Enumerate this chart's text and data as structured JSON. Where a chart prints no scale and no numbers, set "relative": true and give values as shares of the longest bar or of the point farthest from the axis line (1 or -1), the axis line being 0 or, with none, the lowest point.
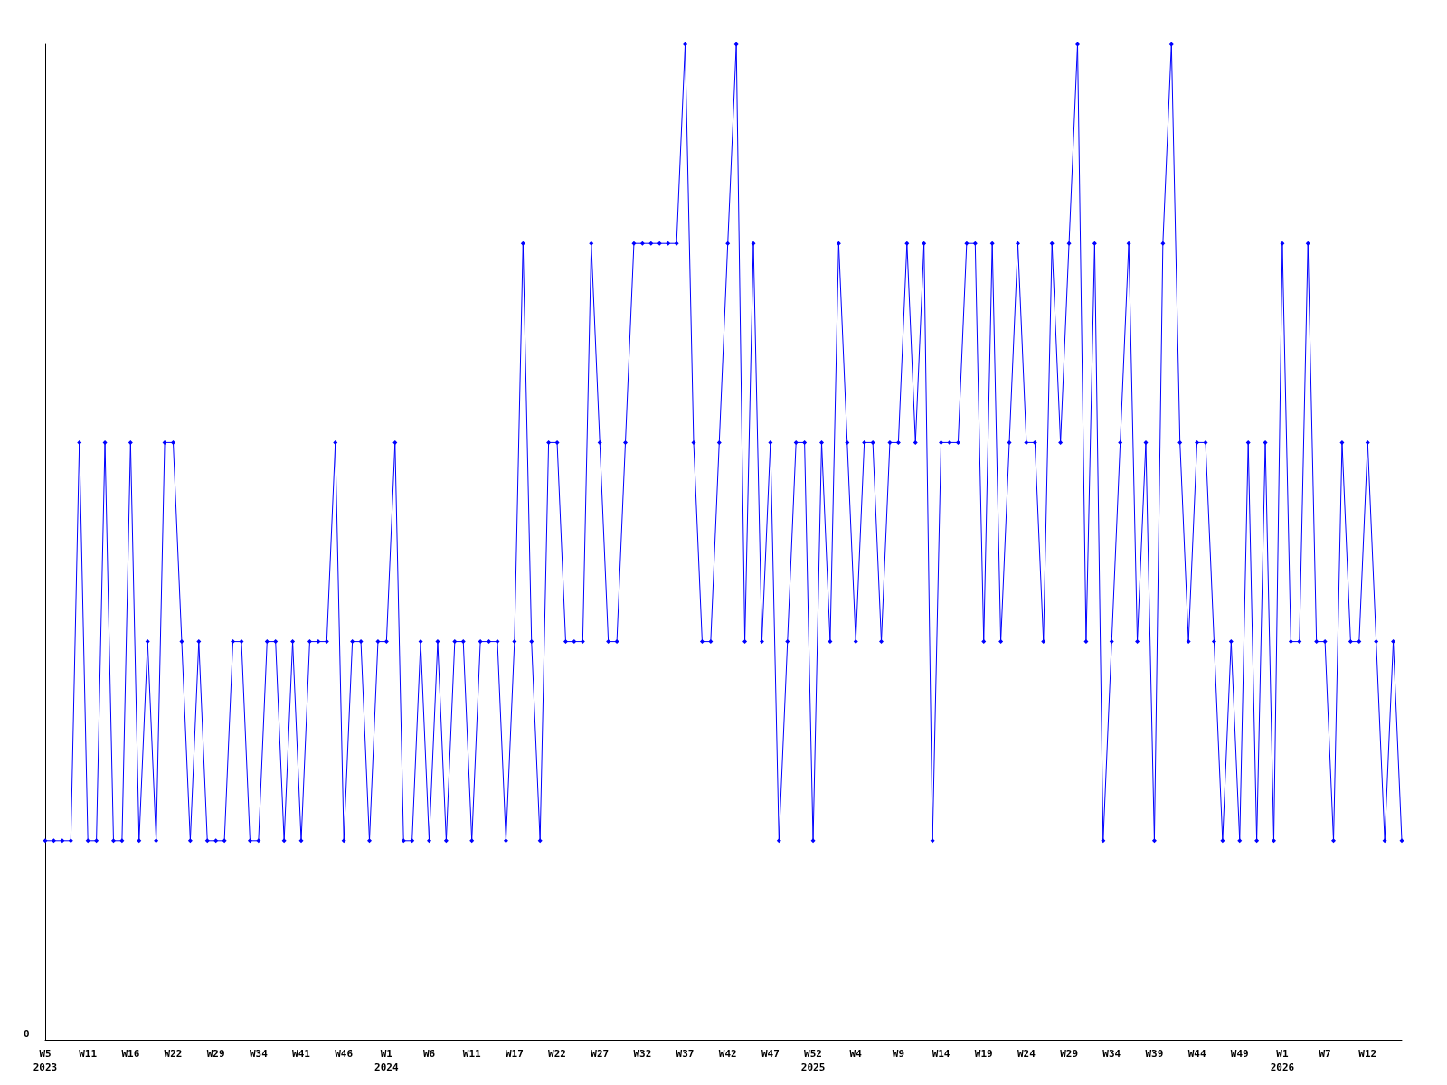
{
  "chart_data": {
    "type": "line",
    "relative": true,
    "marker": "diamond",
    "line_style": "solid",
    "annotations": [
      "0"
    ],
    "categories": [
      "W5\n2023",
      null,
      null,
      null,
      null,
      "W11",
      null,
      null,
      null,
      null,
      "W16",
      null,
      null,
      null,
      null,
      "W22",
      null,
      null,
      null,
      null,
      "W29",
      null,
      null,
      null,
      null,
      "W34",
      null,
      null,
      null,
      null,
      "W41",
      null,
      null,
      null,
      null,
      "W46",
      null,
      null,
      null,
      null,
      "W1\n2024",
      null,
      null,
      null,
      null,
      "W6",
      null,
      null,
      null,
      null,
      "W11",
      null,
      null,
      null,
      null,
      "W17",
      null,
      null,
      null,
      null,
      "W22",
      null,
      null,
      null,
      null,
      "W27",
      null,
      null,
      null,
      null,
      "W32",
      null,
      null,
      null,
      null,
      "W37",
      null,
      null,
      null,
      null,
      "W42",
      null,
      null,
      null,
      null,
      "W47",
      null,
      null,
      null,
      null,
      "W52\n2025",
      null,
      null,
      null,
      null,
      "W4",
      null,
      null,
      null,
      null,
      "W9",
      null,
      null,
      null,
      null,
      "W14",
      null,
      null,
      null,
      null,
      "W19",
      null,
      null,
      null,
      null,
      "W24",
      null,
      null,
      null,
      null,
      "W29",
      null,
      null,
      null,
      null,
      "W34",
      null,
      null,
      null,
      null,
      "W39",
      null,
      null,
      null,
      null,
      "W44",
      null,
      null,
      null,
      null,
      "W49",
      null,
      null,
      null,
      null,
      "W1\n2026",
      null,
      null,
      null,
      null,
      "W7",
      null,
      null,
      null,
      null,
      "W12",
      null,
      null,
      null,
      null
    ],
    "series": [
      {
        "color": "#0000ff",
        "values": [
          0.2,
          0.2,
          0.2,
          0.2,
          0.6,
          0.2,
          0.2,
          0.6,
          0.2,
          0.2,
          0.6,
          0.2,
          0.4,
          0.2,
          0.6,
          0.6,
          0.4,
          0.2,
          0.4,
          0.2,
          0.2,
          0.2,
          0.4,
          0.4,
          0.2,
          0.2,
          0.4,
          0.4,
          0.2,
          0.4,
          0.2,
          0.4,
          0.4,
          0.4,
          0.6,
          0.2,
          0.4,
          0.4,
          0.2,
          0.4,
          0.4,
          0.6,
          0.2,
          0.2,
          0.4,
          0.2,
          0.4,
          0.2,
          0.4,
          0.4,
          0.2,
          0.4,
          0.4,
          0.4,
          0.2,
          0.4,
          0.8,
          0.4,
          0.2,
          0.6,
          0.6,
          0.4,
          0.4,
          0.4,
          0.8,
          0.6,
          0.4,
          0.4,
          0.6,
          0.8,
          0.8,
          0.8,
          0.8,
          0.8,
          0.8,
          1,
          0.6,
          0.4,
          0.4,
          0.6,
          0.8,
          1,
          0.4,
          0.8,
          0.4,
          0.6,
          0.2,
          0.4,
          0.6,
          0.6,
          0.2,
          0.6,
          0.4,
          0.8,
          0.6,
          0.4,
          0.6,
          0.6,
          0.4,
          0.6,
          0.6,
          0.8,
          0.6,
          0.8,
          0.2,
          0.6,
          0.6,
          0.6,
          0.8,
          0.8,
          0.4,
          0.8,
          0.4,
          0.6,
          0.8,
          0.6,
          0.6,
          0.4,
          0.8,
          0.6,
          0.8,
          1,
          0.4,
          0.8,
          0.2,
          0.4,
          0.6,
          0.8,
          0.4,
          0.6,
          0.2,
          0.8,
          1,
          0.6,
          0.4,
          0.6,
          0.6,
          0.4,
          0.2,
          0.4,
          0.2,
          0.6,
          0.2,
          0.6,
          0.2,
          0.8,
          0.4,
          0.4,
          0.8,
          0.4,
          0.4,
          0.2,
          0.6,
          0.4,
          0.4,
          0.6,
          0.4,
          0.2,
          0.4,
          0.2
        ]
      }
    ]
  }
}
